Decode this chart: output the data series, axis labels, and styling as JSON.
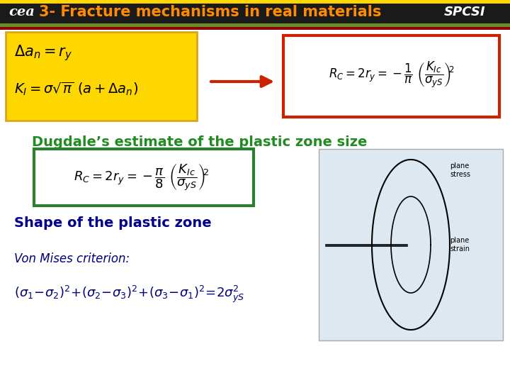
{
  "title": "3- Fracture mechanisms in real materials",
  "bg_color": "#ffffff",
  "title_color": "#cc6600",
  "header_bar_color": "#8B0000",
  "green_bar_color": "#556B00",
  "yellow_box_color": "#FFD700",
  "red_box_color": "#CC2200",
  "green_box_color": "#2E7D32",
  "arrow_color": "#CC2200",
  "dugdale_title": "Dugdale’s estimate of the plastic zone size",
  "dugdale_color": "#228B22",
  "shape_title": "Shape of the plastic zone",
  "shape_color": "#00008B",
  "von_mises_label": "Von Mises criterion:",
  "von_mises_color": "#000080"
}
